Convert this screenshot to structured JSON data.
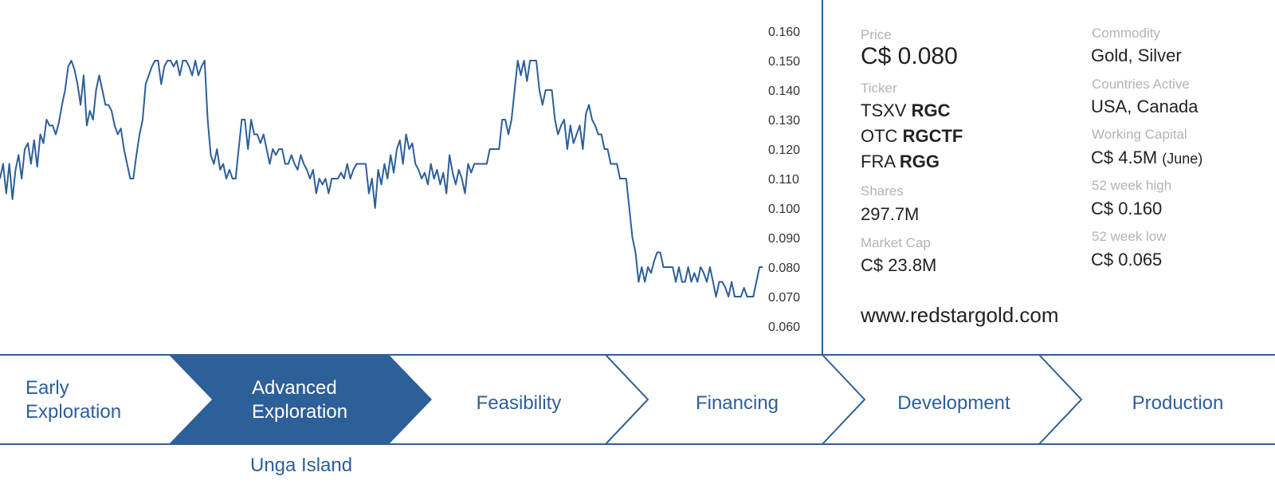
{
  "chart_data": {
    "type": "line",
    "series": [
      {
        "values": [
          0.11,
          0.115,
          0.105,
          0.115,
          0.103,
          0.113,
          0.118,
          0.11,
          0.12,
          0.122,
          0.115,
          0.123,
          0.114,
          0.125,
          0.122,
          0.13,
          0.128,
          0.128,
          0.125,
          0.129,
          0.135,
          0.14,
          0.148,
          0.15,
          0.147,
          0.142,
          0.135,
          0.145,
          0.128,
          0.133,
          0.13,
          0.14,
          0.145,
          0.14,
          0.135,
          0.135,
          0.133,
          0.128,
          0.125,
          0.127,
          0.12,
          0.115,
          0.11,
          0.11,
          0.118,
          0.125,
          0.13,
          0.142,
          0.145,
          0.148,
          0.15,
          0.15,
          0.142,
          0.148,
          0.15,
          0.15,
          0.148,
          0.15,
          0.145,
          0.15,
          0.15,
          0.148,
          0.145,
          0.15,
          0.145,
          0.148,
          0.15,
          0.13,
          0.118,
          0.115,
          0.12,
          0.113,
          0.115,
          0.11,
          0.113,
          0.11,
          0.11,
          0.12,
          0.13,
          0.13,
          0.12,
          0.13,
          0.125,
          0.125,
          0.122,
          0.125,
          0.12,
          0.115,
          0.12,
          0.118,
          0.12,
          0.12,
          0.115,
          0.115,
          0.118,
          0.115,
          0.113,
          0.118,
          0.115,
          0.113,
          0.11,
          0.113,
          0.105,
          0.11,
          0.108,
          0.11,
          0.105,
          0.11,
          0.11,
          0.11,
          0.112,
          0.11,
          0.115,
          0.11,
          0.113,
          0.115,
          0.115,
          0.115,
          0.115,
          0.105,
          0.11,
          0.1,
          0.113,
          0.108,
          0.115,
          0.11,
          0.118,
          0.112,
          0.12,
          0.123,
          0.115,
          0.125,
          0.12,
          0.122,
          0.115,
          0.113,
          0.11,
          0.112,
          0.108,
          0.115,
          0.11,
          0.113,
          0.108,
          0.112,
          0.105,
          0.118,
          0.112,
          0.108,
          0.113,
          0.11,
          0.105,
          0.115,
          0.112,
          0.115,
          0.115,
          0.115,
          0.115,
          0.115,
          0.12,
          0.12,
          0.12,
          0.12,
          0.13,
          0.13,
          0.125,
          0.13,
          0.14,
          0.15,
          0.145,
          0.15,
          0.143,
          0.15,
          0.15,
          0.15,
          0.14,
          0.135,
          0.14,
          0.14,
          0.14,
          0.13,
          0.125,
          0.128,
          0.13,
          0.12,
          0.128,
          0.122,
          0.125,
          0.128,
          0.12,
          0.132,
          0.135,
          0.13,
          0.128,
          0.125,
          0.125,
          0.12,
          0.12,
          0.115,
          0.115,
          0.115,
          0.11,
          0.11,
          0.11,
          0.1,
          0.09,
          0.085,
          0.075,
          0.08,
          0.075,
          0.08,
          0.078,
          0.082,
          0.085,
          0.085,
          0.08,
          0.08,
          0.08,
          0.08,
          0.075,
          0.08,
          0.075,
          0.075,
          0.08,
          0.075,
          0.078,
          0.075,
          0.08,
          0.078,
          0.075,
          0.08,
          0.075,
          0.07,
          0.075,
          0.075,
          0.073,
          0.07,
          0.075,
          0.07,
          0.07,
          0.07,
          0.073,
          0.07,
          0.07,
          0.07,
          0.075,
          0.08,
          0.08
        ]
      }
    ],
    "ylim": [
      0.055,
      0.165
    ],
    "yticks": [
      "0.160",
      "0.150",
      "0.140",
      "0.130",
      "0.120",
      "0.110",
      "0.100",
      "0.090",
      "0.080",
      "0.070",
      "0.060"
    ],
    "line_color": "#2d5f99",
    "grid": false
  },
  "info": {
    "price": {
      "label": "Price",
      "value": "C$ 0.080"
    },
    "ticker": {
      "label": "Ticker",
      "rows": [
        {
          "exchange": "TSXV",
          "symbol": "RGC"
        },
        {
          "exchange": "OTC",
          "symbol": "RGCTF"
        },
        {
          "exchange": "FRA",
          "symbol": "RGG"
        }
      ]
    },
    "shares": {
      "label": "Shares",
      "value": "297.7M"
    },
    "market_cap": {
      "label": "Market Cap",
      "value": "C$ 23.8M"
    },
    "commodity": {
      "label": "Commodity",
      "value": "Gold, Silver"
    },
    "countries": {
      "label": "Countries Active",
      "value": "USA, Canada"
    },
    "working_capital": {
      "label": "Working Capital",
      "value": "C$ 4.5M",
      "note": "(June)"
    },
    "high52": {
      "label": "52 week high",
      "value": "C$ 0.160"
    },
    "low52": {
      "label": "52 week low",
      "value": "C$ 0.065"
    },
    "website": "www.redstargold.com"
  },
  "pipeline": {
    "stages": [
      {
        "line1": "Early",
        "line2": "Exploration"
      },
      {
        "line1": "Advanced",
        "line2": "Exploration"
      },
      {
        "label": "Feasibility"
      },
      {
        "label": "Financing"
      },
      {
        "label": "Development"
      },
      {
        "label": "Production"
      }
    ],
    "active_index": 1,
    "project": "Unga Island",
    "colors": {
      "accent": "#2d5f99",
      "active_text": "#ffffff"
    }
  }
}
